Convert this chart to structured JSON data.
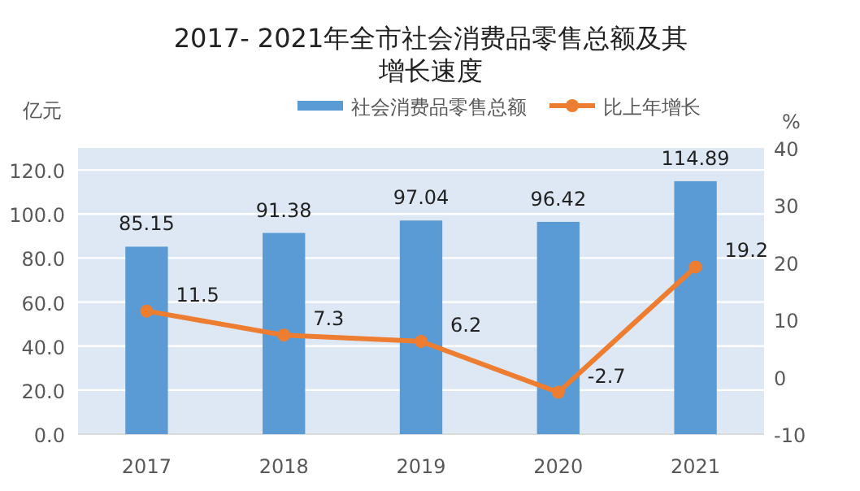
{
  "chart_data": {
    "type": "bar",
    "title": "2017- 2021年全市社会消费品零售总额及其增长速度",
    "categories": [
      "2017",
      "2018",
      "2019",
      "2020",
      "2021"
    ],
    "series": [
      {
        "name": "社会消费品零售总额",
        "color": "#5b9bd5",
        "values": [
          85.15,
          91.38,
          97.04,
          96.42,
          114.89
        ]
      },
      {
        "name": "比上年增长",
        "type": "line",
        "axis": "y2",
        "color": "#ed7d31",
        "marker": "circle",
        "values": [
          11.5,
          7.3,
          6.2,
          -2.7,
          19.2
        ]
      }
    ],
    "ylabel": "亿元",
    "y2label": "%",
    "ylim": [
      0,
      130
    ],
    "yticks": [
      {
        "value": 0,
        "label": "0.0"
      },
      {
        "value": 20,
        "label": "20.0"
      },
      {
        "value": 40,
        "label": "40.0"
      },
      {
        "value": 60,
        "label": "60.0"
      },
      {
        "value": 80,
        "label": "80.0"
      },
      {
        "value": 100,
        "label": "100.0"
      },
      {
        "value": 120,
        "label": "120.0"
      }
    ],
    "y2lim": [
      -10,
      40
    ],
    "y2ticks": [
      -10,
      0,
      10,
      20,
      30,
      40
    ],
    "grid": "y",
    "legend": "top",
    "data_labels": true
  }
}
